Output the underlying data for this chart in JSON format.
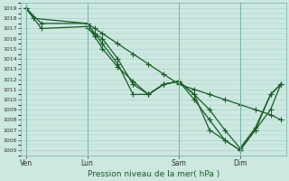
{
  "xlabel": "Pression niveau de la mer( hPa )",
  "ylim": [
    1004.5,
    1019.5
  ],
  "yticks": [
    1005,
    1006,
    1007,
    1008,
    1009,
    1010,
    1011,
    1012,
    1013,
    1014,
    1015,
    1016,
    1017,
    1018,
    1019
  ],
  "xtick_labels": [
    "Ven",
    "Lun",
    "Sam",
    "Dim"
  ],
  "xtick_positions": [
    0,
    24,
    60,
    84
  ],
  "xlim": [
    -2,
    102
  ],
  "bg_color": "#cce8e0",
  "grid_color": "#a8d4cc",
  "line_color": "#1a5c28",
  "marker": "+",
  "lw": 0.9,
  "ms": 4,
  "line1_x": [
    0,
    3,
    24,
    27,
    30,
    36,
    42,
    48,
    54,
    60,
    66,
    72,
    78,
    84,
    90,
    96,
    100
  ],
  "line1_y": [
    1019.0,
    1018.0,
    1017.5,
    1017.0,
    1016.5,
    1015.5,
    1014.5,
    1013.5,
    1012.5,
    1011.5,
    1011.0,
    1010.5,
    1010.0,
    1009.5,
    1009.0,
    1008.5,
    1008.0
  ],
  "line2_x": [
    0,
    6,
    24,
    27,
    30,
    36,
    42,
    48,
    54,
    60,
    66,
    72,
    78,
    84,
    90,
    96,
    100
  ],
  "line2_y": [
    1019.0,
    1017.0,
    1017.2,
    1016.2,
    1015.0,
    1013.2,
    1011.8,
    1010.5,
    1011.5,
    1011.8,
    1010.5,
    1009.0,
    1007.0,
    1005.2,
    1007.2,
    1010.5,
    1011.5
  ],
  "line3_x": [
    0,
    6,
    24,
    27,
    30,
    36,
    42,
    48,
    54,
    60,
    66,
    72,
    78,
    84,
    90,
    96,
    100
  ],
  "line3_y": [
    1019.0,
    1017.5,
    1017.5,
    1016.5,
    1015.5,
    1013.5,
    1010.5,
    1010.5,
    1011.5,
    1011.8,
    1010.0,
    1008.0,
    1006.0,
    1005.0,
    1007.0,
    1009.0,
    1011.5
  ],
  "line4_x": [
    24,
    27,
    30,
    36,
    42,
    48,
    54,
    60,
    66,
    72,
    78,
    84,
    90,
    96,
    100
  ],
  "line4_y": [
    1017.0,
    1016.5,
    1016.0,
    1014.0,
    1011.5,
    1010.5,
    1011.5,
    1011.8,
    1010.5,
    1007.0,
    1006.0,
    1005.0,
    1007.0,
    1010.5,
    1011.5
  ]
}
